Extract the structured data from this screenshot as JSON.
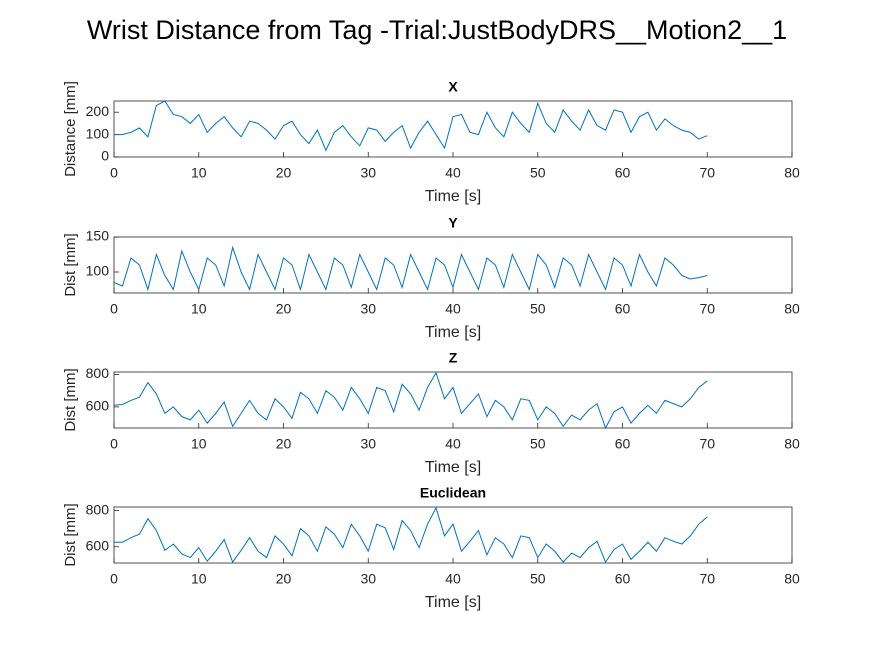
{
  "title": "Wrist Distance from Tag -Trial:JustBodyDRS__Motion2__1",
  "chart_data": [
    {
      "type": "line",
      "title": "X",
      "xlabel": "Time [s]",
      "ylabel": "Distance [mm]",
      "color": "#0072bd",
      "xlim": [
        0,
        80
      ],
      "xticks": [
        0,
        10,
        20,
        30,
        40,
        50,
        60,
        70,
        80
      ],
      "ylim": [
        0,
        250
      ],
      "yticks": [
        0,
        100,
        200
      ],
      "x": [
        0,
        1,
        2,
        3,
        4,
        5,
        6,
        7,
        8,
        9,
        10,
        11,
        12,
        13,
        14,
        15,
        16,
        17,
        18,
        19,
        20,
        21,
        22,
        23,
        24,
        25,
        26,
        27,
        28,
        29,
        30,
        31,
        32,
        33,
        34,
        35,
        36,
        37,
        38,
        39,
        40,
        41,
        42,
        43,
        44,
        45,
        46,
        47,
        48,
        49,
        50,
        51,
        52,
        53,
        54,
        55,
        56,
        57,
        58,
        59,
        60,
        61,
        62,
        63,
        64,
        65,
        66,
        67,
        68,
        69,
        70
      ],
      "values": [
        100,
        100,
        110,
        130,
        90,
        230,
        250,
        190,
        180,
        150,
        190,
        110,
        150,
        180,
        130,
        90,
        160,
        150,
        120,
        80,
        140,
        160,
        100,
        60,
        120,
        30,
        110,
        140,
        90,
        50,
        130,
        120,
        70,
        110,
        140,
        40,
        110,
        160,
        100,
        40,
        180,
        190,
        110,
        100,
        200,
        130,
        90,
        200,
        150,
        110,
        240,
        150,
        110,
        210,
        160,
        120,
        210,
        140,
        120,
        210,
        200,
        110,
        180,
        200,
        120,
        170,
        140,
        120,
        110,
        80,
        95
      ]
    },
    {
      "type": "line",
      "title": "Y",
      "xlabel": "Time [s]",
      "ylabel": "Dist [mm]",
      "color": "#0072bd",
      "xlim": [
        0,
        80
      ],
      "xticks": [
        0,
        10,
        20,
        30,
        40,
        50,
        60,
        70,
        80
      ],
      "ylim": [
        70,
        150
      ],
      "yticks": [
        100,
        150
      ],
      "x": [
        0,
        1,
        2,
        3,
        4,
        5,
        6,
        7,
        8,
        9,
        10,
        11,
        12,
        13,
        14,
        15,
        16,
        17,
        18,
        19,
        20,
        21,
        22,
        23,
        24,
        25,
        26,
        27,
        28,
        29,
        30,
        31,
        32,
        33,
        34,
        35,
        36,
        37,
        38,
        39,
        40,
        41,
        42,
        43,
        44,
        45,
        46,
        47,
        48,
        49,
        50,
        51,
        52,
        53,
        54,
        55,
        56,
        57,
        58,
        59,
        60,
        61,
        62,
        63,
        64,
        65,
        66,
        67,
        68,
        69,
        70
      ],
      "values": [
        85,
        80,
        120,
        110,
        75,
        125,
        95,
        75,
        130,
        100,
        75,
        120,
        110,
        80,
        135,
        100,
        75,
        125,
        100,
        75,
        120,
        110,
        75,
        125,
        100,
        75,
        120,
        110,
        78,
        125,
        100,
        75,
        120,
        110,
        78,
        125,
        100,
        75,
        120,
        110,
        78,
        125,
        100,
        75,
        120,
        110,
        78,
        125,
        100,
        75,
        125,
        110,
        78,
        120,
        110,
        80,
        125,
        100,
        75,
        120,
        110,
        80,
        125,
        100,
        80,
        120,
        110,
        95,
        90,
        92,
        95
      ]
    },
    {
      "type": "line",
      "title": "Z",
      "xlabel": "Time [s]",
      "ylabel": "Dist [mm]",
      "color": "#0072bd",
      "xlim": [
        0,
        80
      ],
      "xticks": [
        0,
        10,
        20,
        30,
        40,
        50,
        60,
        70,
        80
      ],
      "ylim": [
        470,
        815
      ],
      "yticks": [
        600,
        800
      ],
      "x": [
        0,
        1,
        2,
        3,
        4,
        5,
        6,
        7,
        8,
        9,
        10,
        11,
        12,
        13,
        14,
        15,
        16,
        17,
        18,
        19,
        20,
        21,
        22,
        23,
        24,
        25,
        26,
        27,
        28,
        29,
        30,
        31,
        32,
        33,
        34,
        35,
        36,
        37,
        38,
        39,
        40,
        41,
        42,
        43,
        44,
        45,
        46,
        47,
        48,
        49,
        50,
        51,
        52,
        53,
        54,
        55,
        56,
        57,
        58,
        59,
        60,
        61,
        62,
        63,
        64,
        65,
        66,
        67,
        68,
        69,
        70
      ],
      "values": [
        610,
        615,
        640,
        660,
        750,
        680,
        560,
        600,
        540,
        520,
        580,
        500,
        560,
        630,
        480,
        560,
        640,
        560,
        520,
        650,
        600,
        530,
        690,
        650,
        560,
        700,
        660,
        580,
        720,
        650,
        560,
        720,
        700,
        570,
        740,
        680,
        580,
        720,
        810,
        650,
        720,
        560,
        620,
        680,
        540,
        640,
        600,
        520,
        650,
        640,
        520,
        600,
        560,
        480,
        550,
        520,
        580,
        620,
        470,
        570,
        600,
        500,
        560,
        610,
        560,
        640,
        620,
        600,
        650,
        720,
        760
      ]
    },
    {
      "type": "line",
      "title": "Euclidean",
      "xlabel": "Time [s]",
      "ylabel": "Dist [mm]",
      "color": "#0072bd",
      "xlim": [
        0,
        80
      ],
      "xticks": [
        0,
        10,
        20,
        30,
        40,
        50,
        60,
        70,
        80
      ],
      "ylim": [
        510,
        820
      ],
      "yticks": [
        600,
        800
      ],
      "x": [
        0,
        1,
        2,
        3,
        4,
        5,
        6,
        7,
        8,
        9,
        10,
        11,
        12,
        13,
        14,
        15,
        16,
        17,
        18,
        19,
        20,
        21,
        22,
        23,
        24,
        25,
        26,
        27,
        28,
        29,
        30,
        31,
        32,
        33,
        34,
        35,
        36,
        37,
        38,
        39,
        40,
        41,
        42,
        43,
        44,
        45,
        46,
        47,
        48,
        49,
        50,
        51,
        52,
        53,
        54,
        55,
        56,
        57,
        58,
        59,
        60,
        61,
        62,
        63,
        64,
        65,
        66,
        67,
        68,
        69,
        70
      ],
      "values": [
        625,
        625,
        650,
        670,
        755,
        690,
        580,
        615,
        560,
        540,
        595,
        520,
        575,
        640,
        515,
        580,
        650,
        575,
        540,
        660,
        615,
        550,
        700,
        660,
        575,
        710,
        670,
        595,
        725,
        660,
        575,
        725,
        705,
        585,
        745,
        690,
        595,
        725,
        815,
        660,
        725,
        575,
        630,
        690,
        555,
        650,
        615,
        540,
        660,
        650,
        540,
        615,
        575,
        515,
        565,
        540,
        595,
        630,
        515,
        585,
        615,
        530,
        575,
        625,
        575,
        650,
        630,
        615,
        660,
        725,
        765
      ]
    }
  ]
}
